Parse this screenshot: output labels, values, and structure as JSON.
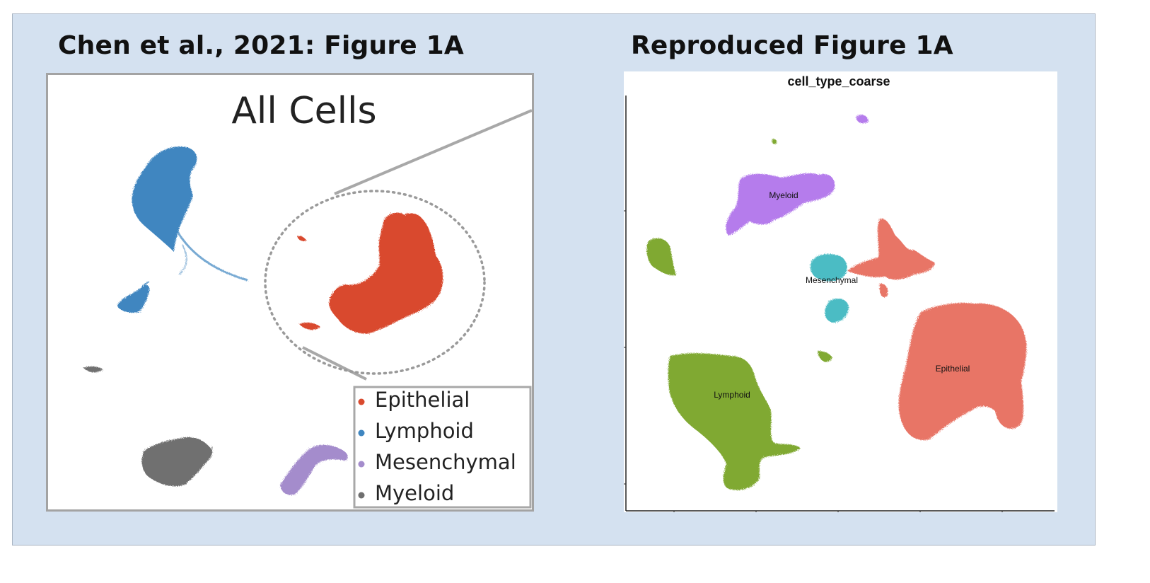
{
  "titles": {
    "left": "Chen et al., 2021: Figure 1A",
    "right": "Reproduced Figure 1A"
  },
  "chart_data": [
    {
      "type": "scatter",
      "title": "All Cells",
      "legend": {
        "placement": "bottom-right",
        "entries": [
          {
            "name": "Epithelial",
            "color": "#d94a2e"
          },
          {
            "name": "Lymphoid",
            "color": "#3f86c0"
          },
          {
            "name": "Mesenchymal",
            "color": "#a48ccc"
          },
          {
            "name": "Myeloid",
            "color": "#6f6f6f"
          }
        ]
      },
      "callout": "dotted circle around Epithelial cluster with zoom lines",
      "grid": false
    },
    {
      "type": "scatter",
      "title": "cell_type_coarse",
      "clusters": [
        {
          "name": "Myeloid",
          "color": "#b57cec"
        },
        {
          "name": "Mesenchymal",
          "color": "#4bbcc4"
        },
        {
          "name": "Epithelial",
          "color": "#e87466"
        },
        {
          "name": "Lymphoid",
          "color": "#80a932"
        }
      ],
      "legend": "on data",
      "grid": false
    }
  ]
}
